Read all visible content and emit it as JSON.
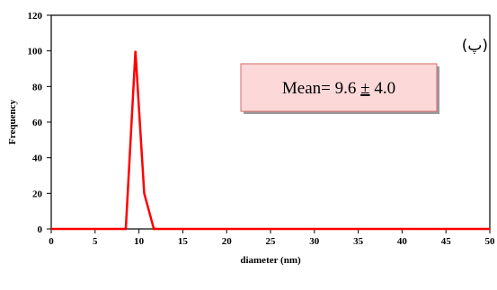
{
  "chart_data": {
    "type": "line",
    "xlabel": "diameter (nm)",
    "ylabel": "Frequency",
    "xlim": [
      0,
      50
    ],
    "ylim": [
      0,
      120
    ],
    "x_ticks": [
      0,
      5,
      10,
      15,
      20,
      25,
      30,
      35,
      40,
      45,
      50
    ],
    "y_ticks": [
      0,
      20,
      40,
      60,
      80,
      100,
      120
    ],
    "grid": false,
    "series": [
      {
        "color": "#ff0000",
        "x": [
          0,
          8.5,
          9.6,
          10.6,
          11.7,
          12.5,
          50
        ],
        "y": [
          0,
          0,
          100,
          20,
          0,
          0,
          0
        ]
      }
    ],
    "annotations": {
      "mean_prefix": "Mean= 9.6 ",
      "mean_pm": "±",
      "mean_suffix": " 4.0",
      "panel_label": "(پ)"
    },
    "annotation_box_fill": "#fdd8d8",
    "annotation_box_border": "#d46a6a"
  }
}
